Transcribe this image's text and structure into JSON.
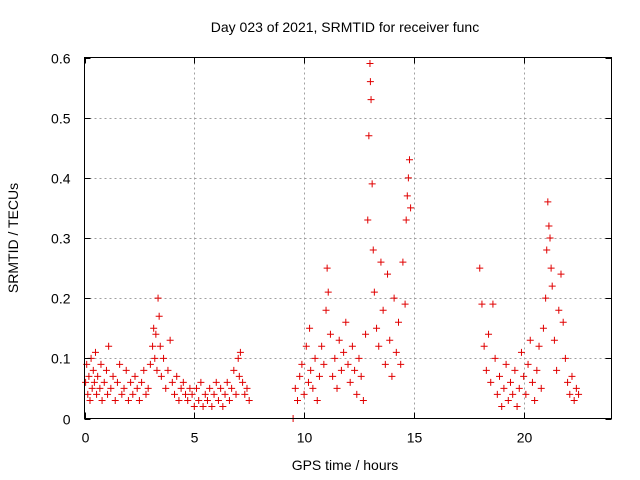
{
  "chart_data": {
    "type": "scatter",
    "title": "Day 023 of 2021, SRMTID for receiver func",
    "xlabel": "GPS time / hours",
    "ylabel": "SRMTID / TECUs",
    "xlim": [
      0,
      24
    ],
    "ylim": [
      0,
      0.6
    ],
    "x_ticks": [
      0,
      5,
      10,
      15,
      20
    ],
    "y_ticks": [
      0,
      0.1,
      0.2,
      0.3,
      0.4,
      0.5,
      0.6
    ],
    "x_tick_labels": [
      "0",
      "5",
      "10",
      "15",
      "20"
    ],
    "y_tick_labels": [
      "0",
      "0.1",
      "0.2",
      "0.3",
      "0.4",
      "0.5",
      "0.6"
    ],
    "grid": true,
    "marker": "+",
    "color": "#e00000",
    "series": [
      {
        "name": "SRMTID",
        "points": [
          [
            0.05,
            0.06
          ],
          [
            0.1,
            0.09
          ],
          [
            0.15,
            0.04
          ],
          [
            0.2,
            0.07
          ],
          [
            0.25,
            0.03
          ],
          [
            0.3,
            0.1
          ],
          [
            0.35,
            0.05
          ],
          [
            0.4,
            0.08
          ],
          [
            0.45,
            0.06
          ],
          [
            0.5,
            0.11
          ],
          [
            0.55,
            0.04
          ],
          [
            0.6,
            0.07
          ],
          [
            0.7,
            0.05
          ],
          [
            0.75,
            0.09
          ],
          [
            0.8,
            0.03
          ],
          [
            0.9,
            0.06
          ],
          [
            1.0,
            0.08
          ],
          [
            1.05,
            0.04
          ],
          [
            1.1,
            0.12
          ],
          [
            1.2,
            0.05
          ],
          [
            1.3,
            0.07
          ],
          [
            1.4,
            0.03
          ],
          [
            1.5,
            0.06
          ],
          [
            1.6,
            0.09
          ],
          [
            1.7,
            0.04
          ],
          [
            1.8,
            0.05
          ],
          [
            1.9,
            0.08
          ],
          [
            2.0,
            0.03
          ],
          [
            2.1,
            0.06
          ],
          [
            2.2,
            0.04
          ],
          [
            2.3,
            0.07
          ],
          [
            2.4,
            0.05
          ],
          [
            2.5,
            0.03
          ],
          [
            2.6,
            0.06
          ],
          [
            2.7,
            0.08
          ],
          [
            2.8,
            0.04
          ],
          [
            2.9,
            0.05
          ],
          [
            3.0,
            0.09
          ],
          [
            3.1,
            0.12
          ],
          [
            3.15,
            0.15
          ],
          [
            3.2,
            0.1
          ],
          [
            3.25,
            0.14
          ],
          [
            3.3,
            0.08
          ],
          [
            3.35,
            0.2
          ],
          [
            3.4,
            0.17
          ],
          [
            3.45,
            0.12
          ],
          [
            3.5,
            0.07
          ],
          [
            3.6,
            0.1
          ],
          [
            3.7,
            0.05
          ],
          [
            3.8,
            0.08
          ],
          [
            3.9,
            0.13
          ],
          [
            4.0,
            0.06
          ],
          [
            4.1,
            0.04
          ],
          [
            4.2,
            0.07
          ],
          [
            4.3,
            0.03
          ],
          [
            4.4,
            0.05
          ],
          [
            4.5,
            0.06
          ],
          [
            4.6,
            0.04
          ],
          [
            4.7,
            0.03
          ],
          [
            4.8,
            0.05
          ],
          [
            4.9,
            0.04
          ],
          [
            5.0,
            0.02
          ],
          [
            5.1,
            0.05
          ],
          [
            5.2,
            0.03
          ],
          [
            5.3,
            0.06
          ],
          [
            5.4,
            0.02
          ],
          [
            5.5,
            0.04
          ],
          [
            5.6,
            0.03
          ],
          [
            5.7,
            0.05
          ],
          [
            5.8,
            0.02
          ],
          [
            5.9,
            0.04
          ],
          [
            6.0,
            0.06
          ],
          [
            6.1,
            0.03
          ],
          [
            6.2,
            0.05
          ],
          [
            6.3,
            0.02
          ],
          [
            6.4,
            0.04
          ],
          [
            6.5,
            0.06
          ],
          [
            6.6,
            0.03
          ],
          [
            6.7,
            0.05
          ],
          [
            6.8,
            0.08
          ],
          [
            6.9,
            0.04
          ],
          [
            7.0,
            0.1
          ],
          [
            7.05,
            0.07
          ],
          [
            7.1,
            0.11
          ],
          [
            7.2,
            0.06
          ],
          [
            7.3,
            0.04
          ],
          [
            7.4,
            0.05
          ],
          [
            7.5,
            0.03
          ],
          [
            9.5,
            0.0
          ],
          [
            9.6,
            0.05
          ],
          [
            9.7,
            0.03
          ],
          [
            9.8,
            0.07
          ],
          [
            9.9,
            0.09
          ],
          [
            10.0,
            0.04
          ],
          [
            10.1,
            0.12
          ],
          [
            10.2,
            0.06
          ],
          [
            10.25,
            0.15
          ],
          [
            10.3,
            0.08
          ],
          [
            10.4,
            0.05
          ],
          [
            10.5,
            0.1
          ],
          [
            10.6,
            0.03
          ],
          [
            10.7,
            0.07
          ],
          [
            10.8,
            0.12
          ],
          [
            10.9,
            0.09
          ],
          [
            11.0,
            0.18
          ],
          [
            11.05,
            0.25
          ],
          [
            11.1,
            0.21
          ],
          [
            11.2,
            0.14
          ],
          [
            11.3,
            0.07
          ],
          [
            11.4,
            0.1
          ],
          [
            11.5,
            0.05
          ],
          [
            11.6,
            0.13
          ],
          [
            11.7,
            0.08
          ],
          [
            11.8,
            0.11
          ],
          [
            11.9,
            0.16
          ],
          [
            12.0,
            0.09
          ],
          [
            12.1,
            0.06
          ],
          [
            12.2,
            0.12
          ],
          [
            12.3,
            0.08
          ],
          [
            12.4,
            0.04
          ],
          [
            12.5,
            0.1
          ],
          [
            12.6,
            0.07
          ],
          [
            12.7,
            0.03
          ],
          [
            12.8,
            0.14
          ],
          [
            12.9,
            0.33
          ],
          [
            12.95,
            0.47
          ],
          [
            13.0,
            0.59
          ],
          [
            13.02,
            0.56
          ],
          [
            13.05,
            0.53
          ],
          [
            13.1,
            0.39
          ],
          [
            13.15,
            0.28
          ],
          [
            13.2,
            0.21
          ],
          [
            13.3,
            0.15
          ],
          [
            13.4,
            0.12
          ],
          [
            13.5,
            0.26
          ],
          [
            13.6,
            0.18
          ],
          [
            13.7,
            0.09
          ],
          [
            13.8,
            0.24
          ],
          [
            13.9,
            0.13
          ],
          [
            14.0,
            0.07
          ],
          [
            14.1,
            0.2
          ],
          [
            14.2,
            0.11
          ],
          [
            14.3,
            0.16
          ],
          [
            14.4,
            0.09
          ],
          [
            14.5,
            0.26
          ],
          [
            14.6,
            0.19
          ],
          [
            14.65,
            0.33
          ],
          [
            14.7,
            0.37
          ],
          [
            14.75,
            0.4
          ],
          [
            14.8,
            0.43
          ],
          [
            14.85,
            0.35
          ],
          [
            18.0,
            0.25
          ],
          [
            18.1,
            0.19
          ],
          [
            18.2,
            0.12
          ],
          [
            18.3,
            0.08
          ],
          [
            18.4,
            0.14
          ],
          [
            18.5,
            0.06
          ],
          [
            18.6,
            0.19
          ],
          [
            18.7,
            0.1
          ],
          [
            18.8,
            0.04
          ],
          [
            18.9,
            0.07
          ],
          [
            19.0,
            0.02
          ],
          [
            19.1,
            0.05
          ],
          [
            19.2,
            0.09
          ],
          [
            19.3,
            0.03
          ],
          [
            19.4,
            0.06
          ],
          [
            19.5,
            0.04
          ],
          [
            19.6,
            0.08
          ],
          [
            19.7,
            0.02
          ],
          [
            19.8,
            0.05
          ],
          [
            19.9,
            0.11
          ],
          [
            20.0,
            0.07
          ],
          [
            20.1,
            0.04
          ],
          [
            20.2,
            0.09
          ],
          [
            20.3,
            0.13
          ],
          [
            20.4,
            0.06
          ],
          [
            20.5,
            0.03
          ],
          [
            20.6,
            0.08
          ],
          [
            20.7,
            0.12
          ],
          [
            20.8,
            0.05
          ],
          [
            20.9,
            0.15
          ],
          [
            21.0,
            0.2
          ],
          [
            21.05,
            0.28
          ],
          [
            21.1,
            0.36
          ],
          [
            21.15,
            0.32
          ],
          [
            21.2,
            0.3
          ],
          [
            21.25,
            0.25
          ],
          [
            21.3,
            0.22
          ],
          [
            21.4,
            0.13
          ],
          [
            21.5,
            0.08
          ],
          [
            21.6,
            0.18
          ],
          [
            21.7,
            0.24
          ],
          [
            21.8,
            0.16
          ],
          [
            21.9,
            0.1
          ],
          [
            22.0,
            0.06
          ],
          [
            22.1,
            0.04
          ],
          [
            22.2,
            0.07
          ],
          [
            22.3,
            0.03
          ],
          [
            22.4,
            0.05
          ],
          [
            22.5,
            0.04
          ]
        ]
      }
    ]
  }
}
